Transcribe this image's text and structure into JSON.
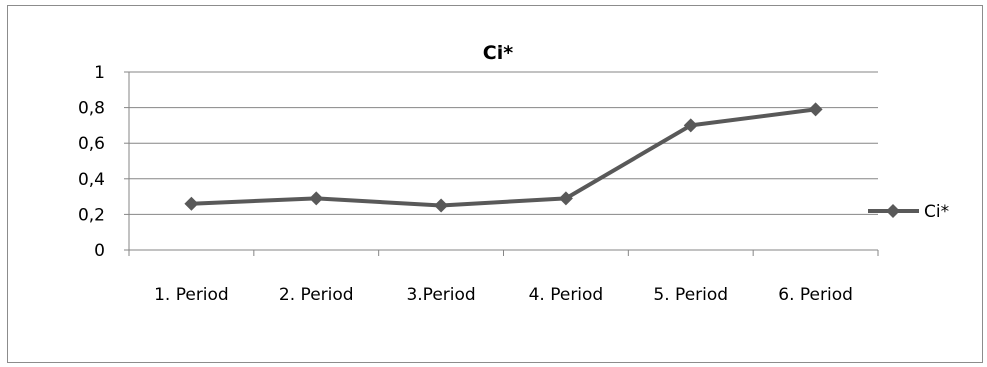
{
  "chart_data": {
    "type": "line",
    "title": "Ci*",
    "xlabel": "",
    "ylabel": "",
    "categories": [
      "1. Period",
      "2. Period",
      "3.Period",
      "4. Period",
      "5. Period",
      "6. Period"
    ],
    "series": [
      {
        "name": "Ci*",
        "values": [
          0.26,
          0.29,
          0.25,
          0.29,
          0.7,
          0.79
        ],
        "color": "#595959",
        "marker": "diamond"
      }
    ],
    "ylim": [
      0,
      1
    ],
    "yticks": [
      0,
      0.2,
      0.4,
      0.6,
      0.8,
      1
    ],
    "ytick_labels": [
      "0",
      "0,2",
      "0,4",
      "0,6",
      "0,8",
      "1"
    ],
    "grid": true,
    "gridline_color": "#868686",
    "legend": "right"
  }
}
